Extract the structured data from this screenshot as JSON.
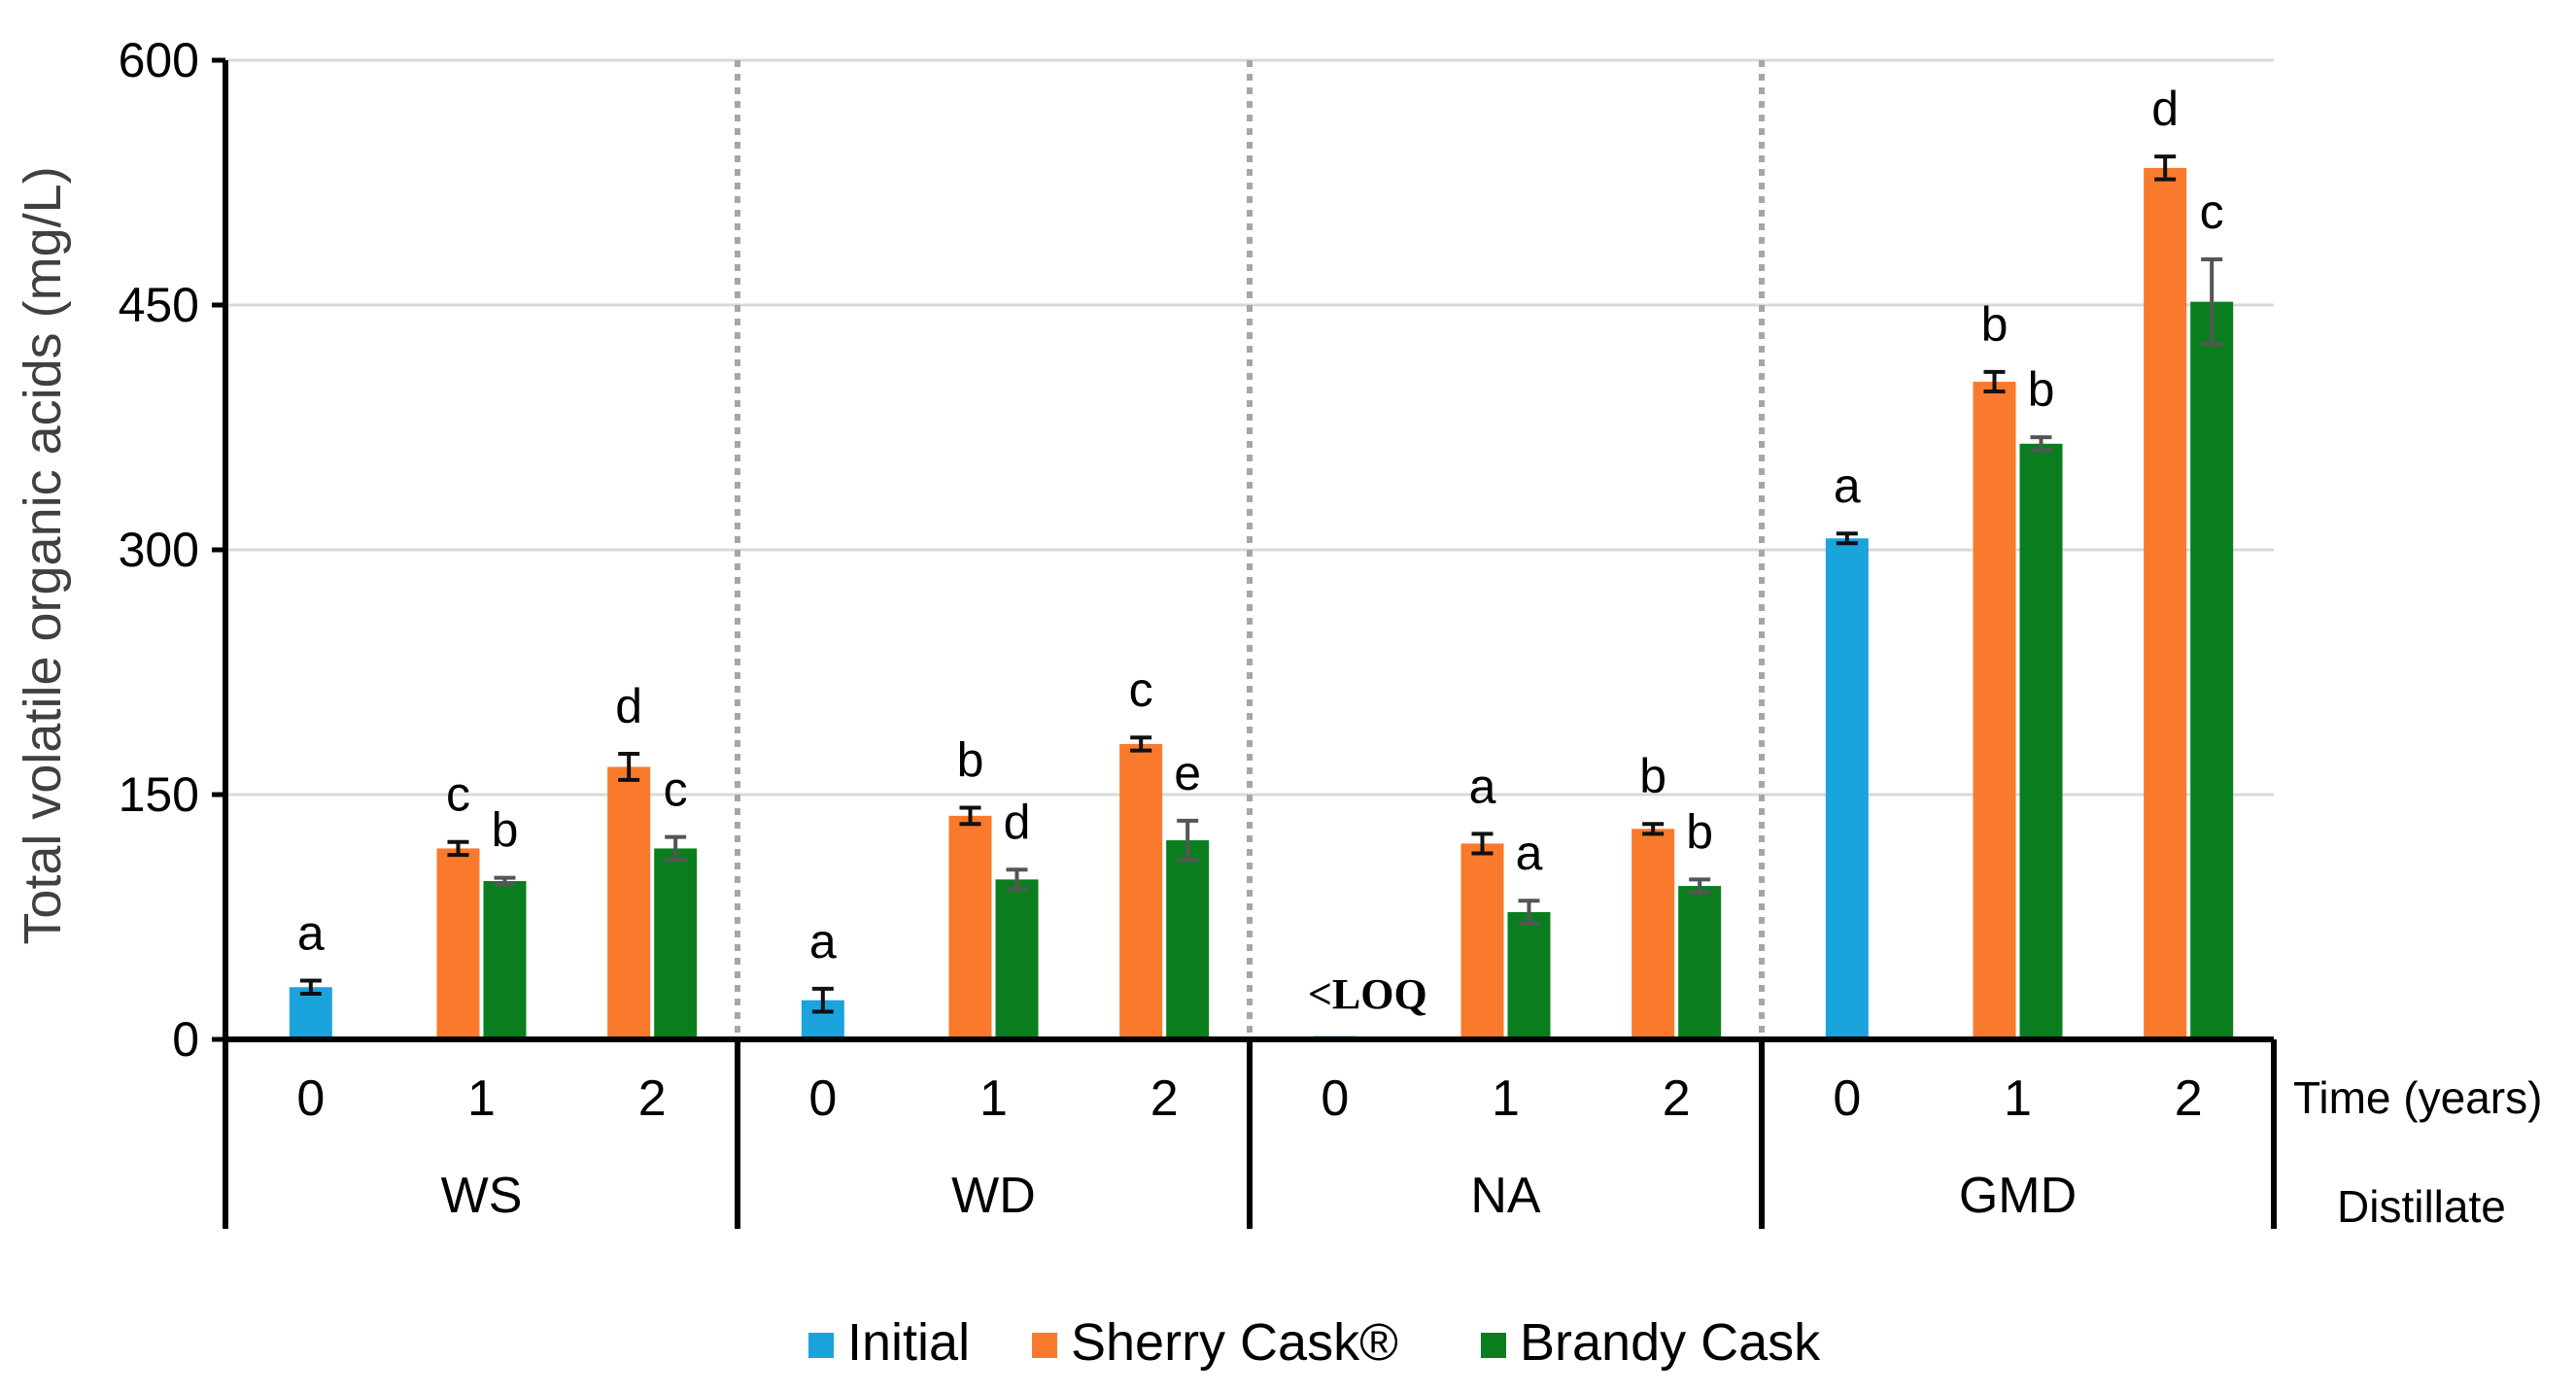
{
  "chart_data": {
    "type": "bar",
    "ylabel": "Total volatile organic acids (mg/L)",
    "ylim": [
      0,
      600
    ],
    "yticks": [
      "0",
      "150",
      "300",
      "450",
      "600"
    ],
    "time_axis_label": "Time (years)",
    "group_axis_label": "Distillate",
    "groups": [
      {
        "name": "WS",
        "times": [
          "0",
          "1",
          "2"
        ],
        "points": [
          {
            "time": "0",
            "series": "Initial",
            "value": 32,
            "err": 4,
            "letter": "a"
          },
          {
            "time": "1",
            "series": "Sherry Cask®",
            "value": 117,
            "err": 4,
            "letter": "c"
          },
          {
            "time": "1",
            "series": "Brandy Cask",
            "value": 97,
            "err": 2,
            "letter": "b"
          },
          {
            "time": "2",
            "series": "Sherry Cask®",
            "value": 167,
            "err": 8,
            "letter": "d"
          },
          {
            "time": "2",
            "series": "Brandy Cask",
            "value": 117,
            "err": 7,
            "letter": "c"
          }
        ]
      },
      {
        "name": "WD",
        "times": [
          "0",
          "1",
          "2"
        ],
        "points": [
          {
            "time": "0",
            "series": "Initial",
            "value": 24,
            "err": 7,
            "letter": "a"
          },
          {
            "time": "1",
            "series": "Sherry Cask®",
            "value": 137,
            "err": 5,
            "letter": "b"
          },
          {
            "time": "1",
            "series": "Brandy Cask",
            "value": 98,
            "err": 6,
            "letter": "d"
          },
          {
            "time": "2",
            "series": "Sherry Cask®",
            "value": 181,
            "err": 4,
            "letter": "c"
          },
          {
            "time": "2",
            "series": "Brandy Cask",
            "value": 122,
            "err": 12,
            "letter": "e"
          }
        ]
      },
      {
        "name": "NA",
        "times": [
          "0",
          "1",
          "2"
        ],
        "points": [
          {
            "time": "0",
            "series": "Initial",
            "value": 2,
            "err": 0,
            "letter": "<LOQ"
          },
          {
            "time": "1",
            "series": "Sherry Cask®",
            "value": 120,
            "err": 6,
            "letter": "a"
          },
          {
            "time": "1",
            "series": "Brandy Cask",
            "value": 78,
            "err": 7,
            "letter": "a"
          },
          {
            "time": "2",
            "series": "Sherry Cask®",
            "value": 129,
            "err": 3,
            "letter": "b"
          },
          {
            "time": "2",
            "series": "Brandy Cask",
            "value": 94,
            "err": 4,
            "letter": "b"
          }
        ]
      },
      {
        "name": "GMD",
        "times": [
          "0",
          "1",
          "2"
        ],
        "points": [
          {
            "time": "0",
            "series": "Initial",
            "value": 307,
            "err": 3,
            "letter": "a"
          },
          {
            "time": "1",
            "series": "Sherry Cask®",
            "value": 403,
            "err": 6,
            "letter": "b"
          },
          {
            "time": "1",
            "series": "Brandy Cask",
            "value": 365,
            "err": 4,
            "letter": "b"
          },
          {
            "time": "2",
            "series": "Sherry Cask®",
            "value": 534,
            "err": 7,
            "letter": "d"
          },
          {
            "time": "2",
            "series": "Brandy Cask",
            "value": 452,
            "err": 26,
            "letter": "c"
          }
        ]
      }
    ],
    "legend": [
      {
        "name": "Initial",
        "color": "#1ba3dc"
      },
      {
        "name": "Sherry Cask®",
        "color": "#f97a2c"
      },
      {
        "name": "Brandy Cask",
        "color": "#0a7e1e"
      }
    ]
  }
}
